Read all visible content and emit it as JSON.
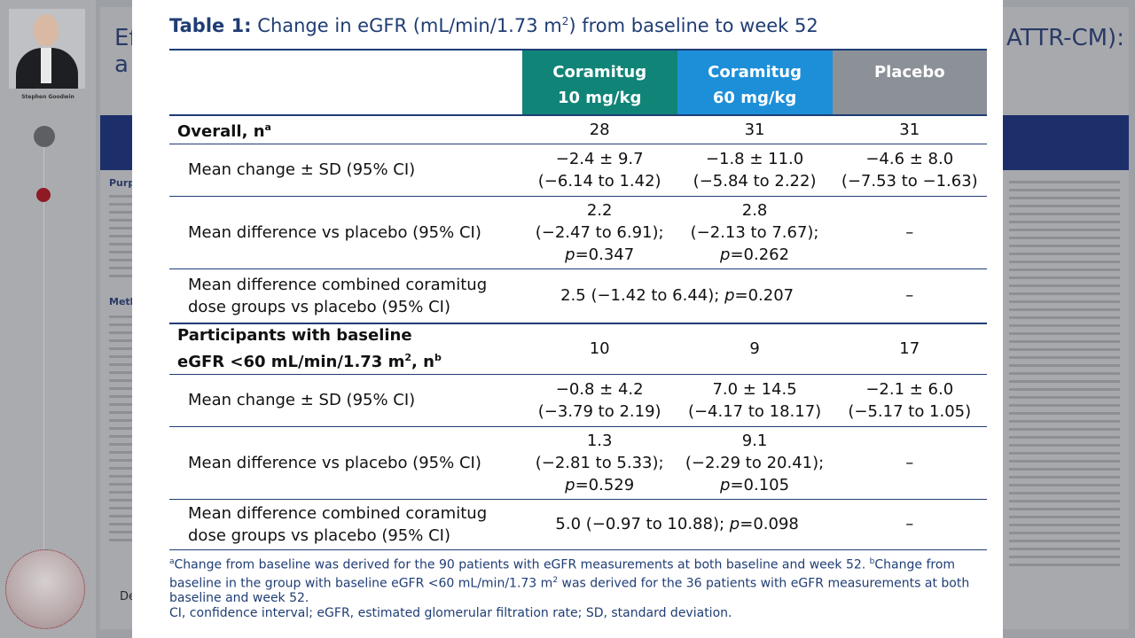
{
  "background": {
    "presenter_name": "Stephen Goodwin",
    "poster_title_left": "Eff",
    "poster_title_left_line2": "a p",
    "poster_title_right": "ATTR-CM):",
    "poster_section_purpose": "Purp",
    "poster_section_methods": "Meth",
    "poster_footer_text": "Dec"
  },
  "table": {
    "title_bold": "Table 1:",
    "title_rest_a": "Change in eGFR (mL/min/1.73 m",
    "title_sup": "2",
    "title_rest_b": ") from baseline to week 52",
    "columns": [
      {
        "line1": "Coramitug",
        "line2": "10 mg/kg",
        "color": "#118478"
      },
      {
        "line1": "Coramitug",
        "line2": "60 mg/kg",
        "color": "#1d8fd8"
      },
      {
        "line1": "Placebo",
        "line2": "",
        "color": "#8b9197"
      }
    ],
    "overall": {
      "label": "Overall, n",
      "label_sup": "a",
      "n": [
        "28",
        "31",
        "31"
      ],
      "mean_change_label": "Mean change ± SD (95% CI)",
      "mean_change": [
        {
          "l1": "−2.4 ± 9.7",
          "l2": "(−6.14 to 1.42)"
        },
        {
          "l1": "−1.8 ± 11.0",
          "l2": "(−5.84 to 2.22)"
        },
        {
          "l1": "−4.6 ± 8.0",
          "l2": "(−7.53 to −1.63)"
        }
      ],
      "mean_diff_label": "Mean difference vs placebo (95% CI)",
      "mean_diff": [
        {
          "l1": "2.2",
          "l2": "(−2.47 to 6.91);",
          "p": "=0.347"
        },
        {
          "l1": "2.8",
          "l2": "(−2.13 to 7.67);",
          "p": "=0.262"
        }
      ],
      "mean_diff_placebo": "–",
      "combined_label_l1": "Mean difference combined coramitug",
      "combined_label_l2": "dose groups vs placebo (95% CI)",
      "combined_value": "2.5 (−1.42 to 6.44);",
      "combined_p": "=0.207",
      "combined_placebo": "–"
    },
    "subgroup": {
      "label_l1": "Participants with baseline",
      "label_l2a": "eGFR <60 mL/min/1.73 m",
      "label_sup2": "2",
      "label_l2b": ", n",
      "label_sup": "b",
      "n": [
        "10",
        "9",
        "17"
      ],
      "mean_change_label": "Mean change ± SD (95% CI)",
      "mean_change": [
        {
          "l1": "−0.8 ± 4.2",
          "l2": "(−3.79 to 2.19)"
        },
        {
          "l1": "7.0 ± 14.5",
          "l2": "(−4.17 to 18.17)"
        },
        {
          "l1": "−2.1 ± 6.0",
          "l2": "(−5.17 to 1.05)"
        }
      ],
      "mean_diff_label": "Mean difference vs placebo (95% CI)",
      "mean_diff": [
        {
          "l1": "1.3",
          "l2": "(−2.81 to 5.33);",
          "p": "=0.529"
        },
        {
          "l1": "9.1",
          "l2": "(−2.29 to 20.41);",
          "p": "=0.105"
        }
      ],
      "mean_diff_placebo": "–",
      "combined_label_l1": "Mean difference combined coramitug",
      "combined_label_l2": "dose groups vs placebo (95% CI)",
      "combined_value": "5.0 (−0.97 to 10.88);",
      "combined_p": "=0.098",
      "combined_placebo": "–"
    },
    "p_letter": "p",
    "footnote_a_mark": "a",
    "footnote_a": "Change from baseline was derived for the 90 patients with eGFR measurements at both baseline and week 52. ",
    "footnote_b_mark": "b",
    "footnote_b_part1": "Change from baseline in the group with baseline eGFR <60 mL/min/1.73 m",
    "footnote_b_sup": "2",
    "footnote_b_part2": " was derived for the 36 patients with eGFR measurements at both baseline and week 52.",
    "abbreviations": "CI, confidence interval; eGFR, estimated glomerular filtration rate; SD, standard deviation."
  }
}
